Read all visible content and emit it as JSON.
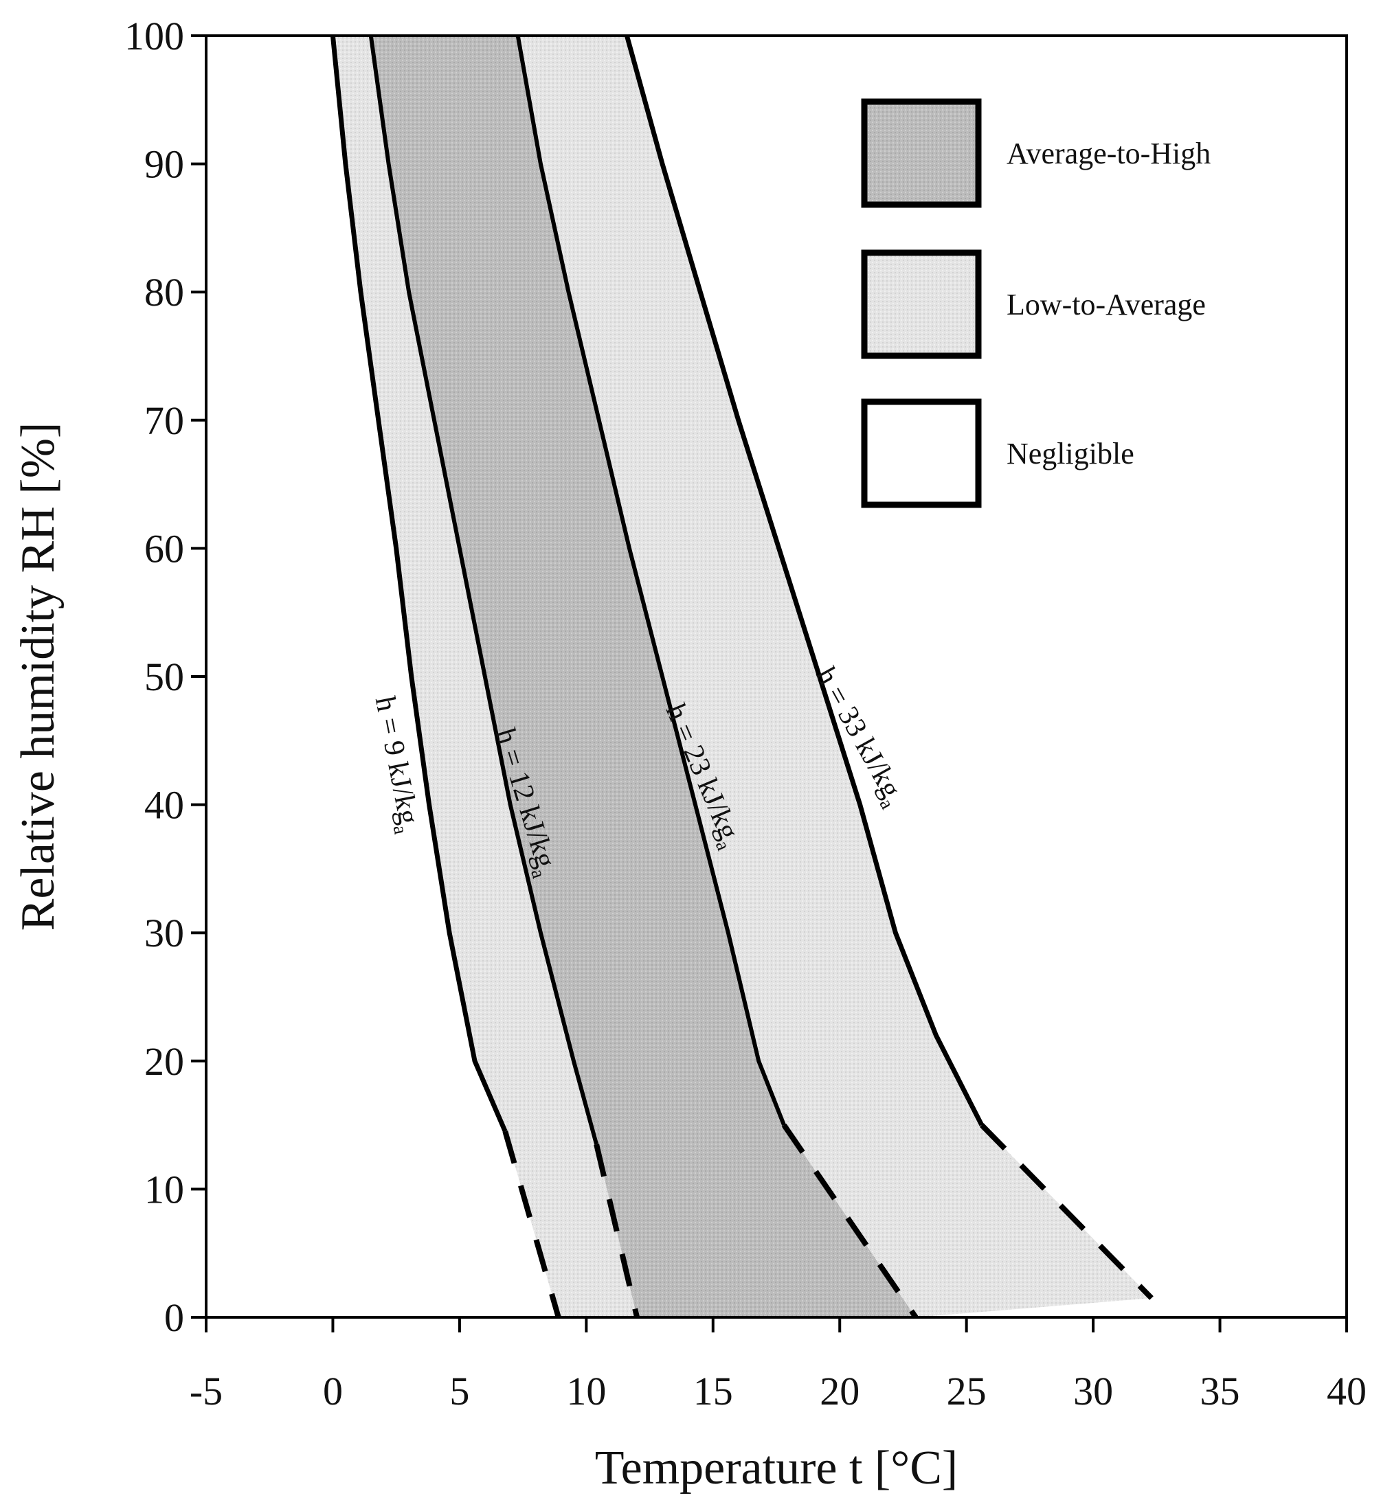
{
  "chart_data": {
    "type": "line",
    "title": "",
    "xlabel": "Temperature t [°C]",
    "ylabel": "Relative humidity RH [%]",
    "xlim": [
      -5,
      40
    ],
    "ylim": [
      0,
      100
    ],
    "xticks": [
      "-5",
      "0",
      "5",
      "10",
      "15",
      "20",
      "25",
      "30",
      "35",
      "40"
    ],
    "yticks": [
      "0",
      "10",
      "20",
      "30",
      "40",
      "50",
      "60",
      "70",
      "80",
      "90",
      "100"
    ],
    "series": [
      {
        "name": "h = 9 kJ/kg",
        "label_main": "h = 9 kJ/kg",
        "label_sub": "a",
        "solid": [
          [
            0.0,
            100
          ],
          [
            0.5,
            90
          ],
          [
            1.1,
            80
          ],
          [
            1.8,
            70
          ],
          [
            2.5,
            60
          ],
          [
            3.1,
            50
          ],
          [
            3.8,
            40
          ],
          [
            4.6,
            30
          ],
          [
            5.6,
            20
          ],
          [
            6.8,
            14.5
          ]
        ],
        "dashed": [
          [
            6.8,
            14.5
          ],
          [
            8.9,
            0
          ]
        ]
      },
      {
        "name": "h = 12 kJ/kg",
        "label_main": "h = 12 kJ/kg",
        "label_sub": "a",
        "solid": [
          [
            1.5,
            100
          ],
          [
            2.2,
            90
          ],
          [
            3.0,
            80
          ],
          [
            4.0,
            70
          ],
          [
            5.0,
            60
          ],
          [
            6.0,
            50
          ],
          [
            7.0,
            40
          ],
          [
            8.2,
            30
          ],
          [
            9.5,
            20
          ],
          [
            10.4,
            13.5
          ]
        ],
        "dashed": [
          [
            10.4,
            13.5
          ],
          [
            12.0,
            0
          ]
        ]
      },
      {
        "name": "h = 23 kJ/kg",
        "label_main": "h = 23 kJ/kg",
        "label_sub": "a",
        "solid": [
          [
            7.3,
            100
          ],
          [
            8.2,
            90
          ],
          [
            9.3,
            80
          ],
          [
            10.5,
            70
          ],
          [
            11.7,
            60
          ],
          [
            13.0,
            50
          ],
          [
            14.3,
            40
          ],
          [
            15.6,
            30
          ],
          [
            16.8,
            20
          ],
          [
            17.8,
            15
          ]
        ],
        "dashed": [
          [
            17.8,
            15
          ],
          [
            23.0,
            0
          ]
        ]
      },
      {
        "name": "h = 33 kJ/kg",
        "label_main": "h = 33 kJ/kg",
        "label_sub": "a",
        "solid": [
          [
            11.6,
            100
          ],
          [
            13.0,
            90
          ],
          [
            14.5,
            80
          ],
          [
            16.0,
            70
          ],
          [
            17.6,
            60
          ],
          [
            19.2,
            50
          ],
          [
            20.8,
            40
          ],
          [
            22.2,
            30
          ],
          [
            23.8,
            22
          ],
          [
            25.6,
            15
          ]
        ],
        "dashed": [
          [
            25.6,
            15
          ],
          [
            32.3,
            1.5
          ]
        ]
      }
    ],
    "bands": [
      {
        "name": "Low-to-Average",
        "between": [
          "h = 9 kJ/kg",
          "h = 12 kJ/kg"
        ],
        "color": "#e2e2e2"
      },
      {
        "name": "Average-to-High",
        "between": [
          "h = 12 kJ/kg",
          "h = 23 kJ/kg"
        ],
        "color": "#bdbdbd"
      },
      {
        "name": "Low-to-Average",
        "between": [
          "h = 23 kJ/kg",
          "h = 33 kJ/kg"
        ],
        "color": "#e2e2e2"
      }
    ],
    "legend": [
      {
        "label": "Average-to-High",
        "color": "#bdbdbd"
      },
      {
        "label": "Low-to-Average",
        "color": "#e2e2e2"
      },
      {
        "label": "Negligible",
        "color": "#ffffff"
      }
    ],
    "legend_position": "top-right",
    "grid": false
  }
}
